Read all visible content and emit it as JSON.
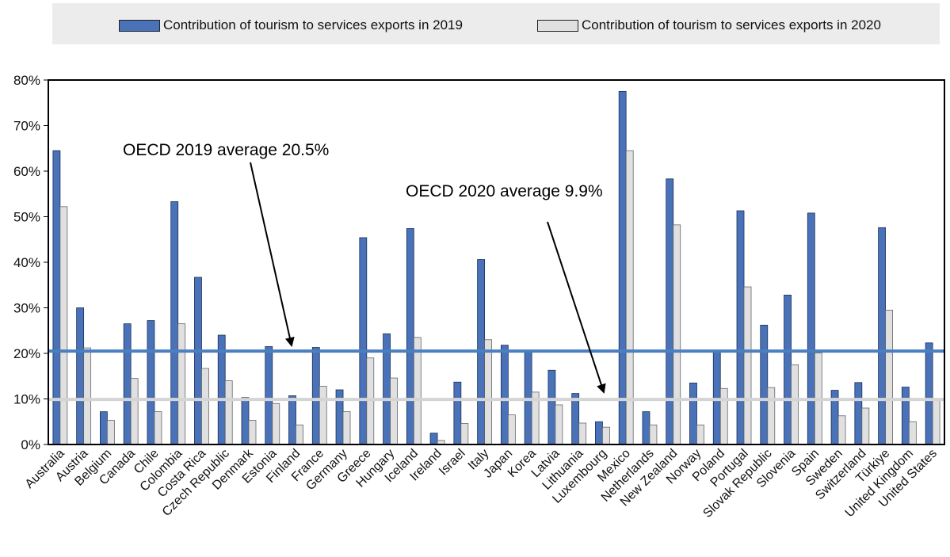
{
  "chart_data": {
    "type": "bar",
    "categories": [
      "Australia",
      "Austria",
      "Belgium",
      "Canada",
      "Chile",
      "Colombia",
      "Costa Rica",
      "Czech Republic",
      "Denmark",
      "Estonia",
      "Finland",
      "France",
      "Germany",
      "Greece",
      "Hungary",
      "Iceland",
      "Ireland",
      "Israel",
      "Italy",
      "Japan",
      "Korea",
      "Latvia",
      "Lithuania",
      "Luxembourg",
      "Mexico",
      "Netherlands",
      "New Zealand",
      "Norway",
      "Poland",
      "Portugal",
      "Slovak Republic",
      "Slovenia",
      "Spain",
      "Sweden",
      "Switzerland",
      "Türkiye",
      "United Kingdom",
      "United States"
    ],
    "series": [
      {
        "name": "Contribution of tourism to services exports in 2019",
        "color": "#4a72b8",
        "values": [
          64.5,
          30,
          7.2,
          26.5,
          27.2,
          53.3,
          36.7,
          24,
          10.3,
          21.5,
          10.7,
          21.3,
          12,
          45.4,
          24.3,
          47.4,
          2.5,
          13.7,
          40.6,
          21.8,
          20.3,
          16.3,
          11.2,
          5,
          77.5,
          7.2,
          58.3,
          13.5,
          20.3,
          51.3,
          26.2,
          32.8,
          50.8,
          11.9,
          13.6,
          47.6,
          12.6,
          22.3
        ]
      },
      {
        "name": "Contribution of tourism to services exports in 2020",
        "color": "#e0e0e0",
        "values": [
          52.2,
          21.2,
          5.3,
          14.5,
          7.2,
          26.5,
          16.7,
          14,
          5.3,
          9,
          4.3,
          12.8,
          7.2,
          19,
          14.6,
          23.5,
          0.9,
          4.6,
          23,
          6.5,
          11.5,
          8.7,
          4.7,
          3.8,
          64.5,
          4.3,
          48.2,
          4.3,
          12.3,
          34.6,
          12.5,
          17.5,
          20.1,
          6.3,
          8,
          29.5,
          5,
          10.1
        ]
      }
    ],
    "ylim": [
      0,
      80
    ],
    "yticks": [
      "0%",
      "10%",
      "20%",
      "30%",
      "40%",
      "50%",
      "60%",
      "70%",
      "80%"
    ],
    "ytick_values": [
      0,
      10,
      20,
      30,
      40,
      50,
      60,
      70,
      80
    ],
    "reference_lines": [
      {
        "value": 20.5,
        "label": "OECD 2019 average 20.5%",
        "color": "#4a7fc0"
      },
      {
        "value": 9.9,
        "label": "OECD 2020 average 9.9%",
        "color": "#d4d4d4"
      }
    ],
    "legend_position": "top",
    "grid": false
  }
}
